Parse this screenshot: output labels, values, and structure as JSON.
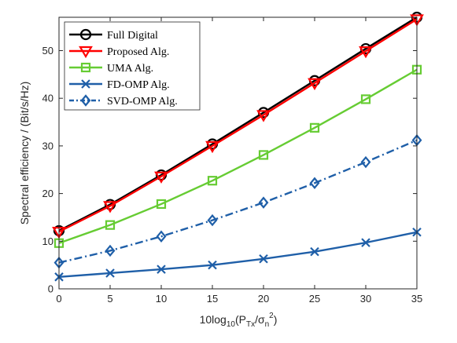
{
  "chart_data": {
    "type": "line",
    "xlabel": "10log10(PTx/σn2)",
    "xlabel_parts": {
      "base": "10log",
      "sub10": "10",
      "open": "(P",
      "subTx": "Tx",
      "slash": "/σ",
      "subn": "n",
      "sup2": "2",
      "close": ")"
    },
    "ylabel": "Spectral efficiency / (Bit/s/Hz)",
    "xlim": [
      0,
      35
    ],
    "ylim": [
      0,
      57
    ],
    "xticks": [
      0,
      5,
      10,
      15,
      20,
      25,
      30,
      35
    ],
    "yticks": [
      0,
      10,
      20,
      30,
      40,
      50
    ],
    "x": [
      0,
      5,
      10,
      15,
      20,
      25,
      30,
      35
    ],
    "grid": false,
    "legend_position": "top-left",
    "series": [
      {
        "name": "Full Digital",
        "color": "#000000",
        "marker": "circle",
        "dash": "solid",
        "values": [
          12.2,
          17.7,
          23.9,
          30.4,
          37.0,
          43.7,
          50.4,
          57.0
        ]
      },
      {
        "name": "Proposed Alg.",
        "color": "#ff0000",
        "marker": "triangle-down",
        "dash": "solid",
        "values": [
          12.0,
          17.4,
          23.6,
          30.0,
          36.5,
          43.2,
          49.9,
          56.6
        ]
      },
      {
        "name": "UMA Alg.",
        "color": "#66cc33",
        "marker": "square",
        "dash": "solid",
        "values": [
          9.6,
          13.4,
          17.8,
          22.7,
          28.1,
          33.8,
          39.8,
          46.0
        ]
      },
      {
        "name": "FD-OMP Alg.",
        "color": "#1f5fa8",
        "marker": "x",
        "dash": "solid",
        "values": [
          2.5,
          3.3,
          4.1,
          5.0,
          6.3,
          7.8,
          9.7,
          11.9
        ]
      },
      {
        "name": "SVD-OMP Alg.",
        "color": "#1f5fa8",
        "marker": "diamond",
        "dash": "dashdot",
        "values": [
          5.5,
          8.0,
          11.0,
          14.4,
          18.1,
          22.2,
          26.6,
          31.2
        ]
      }
    ]
  }
}
